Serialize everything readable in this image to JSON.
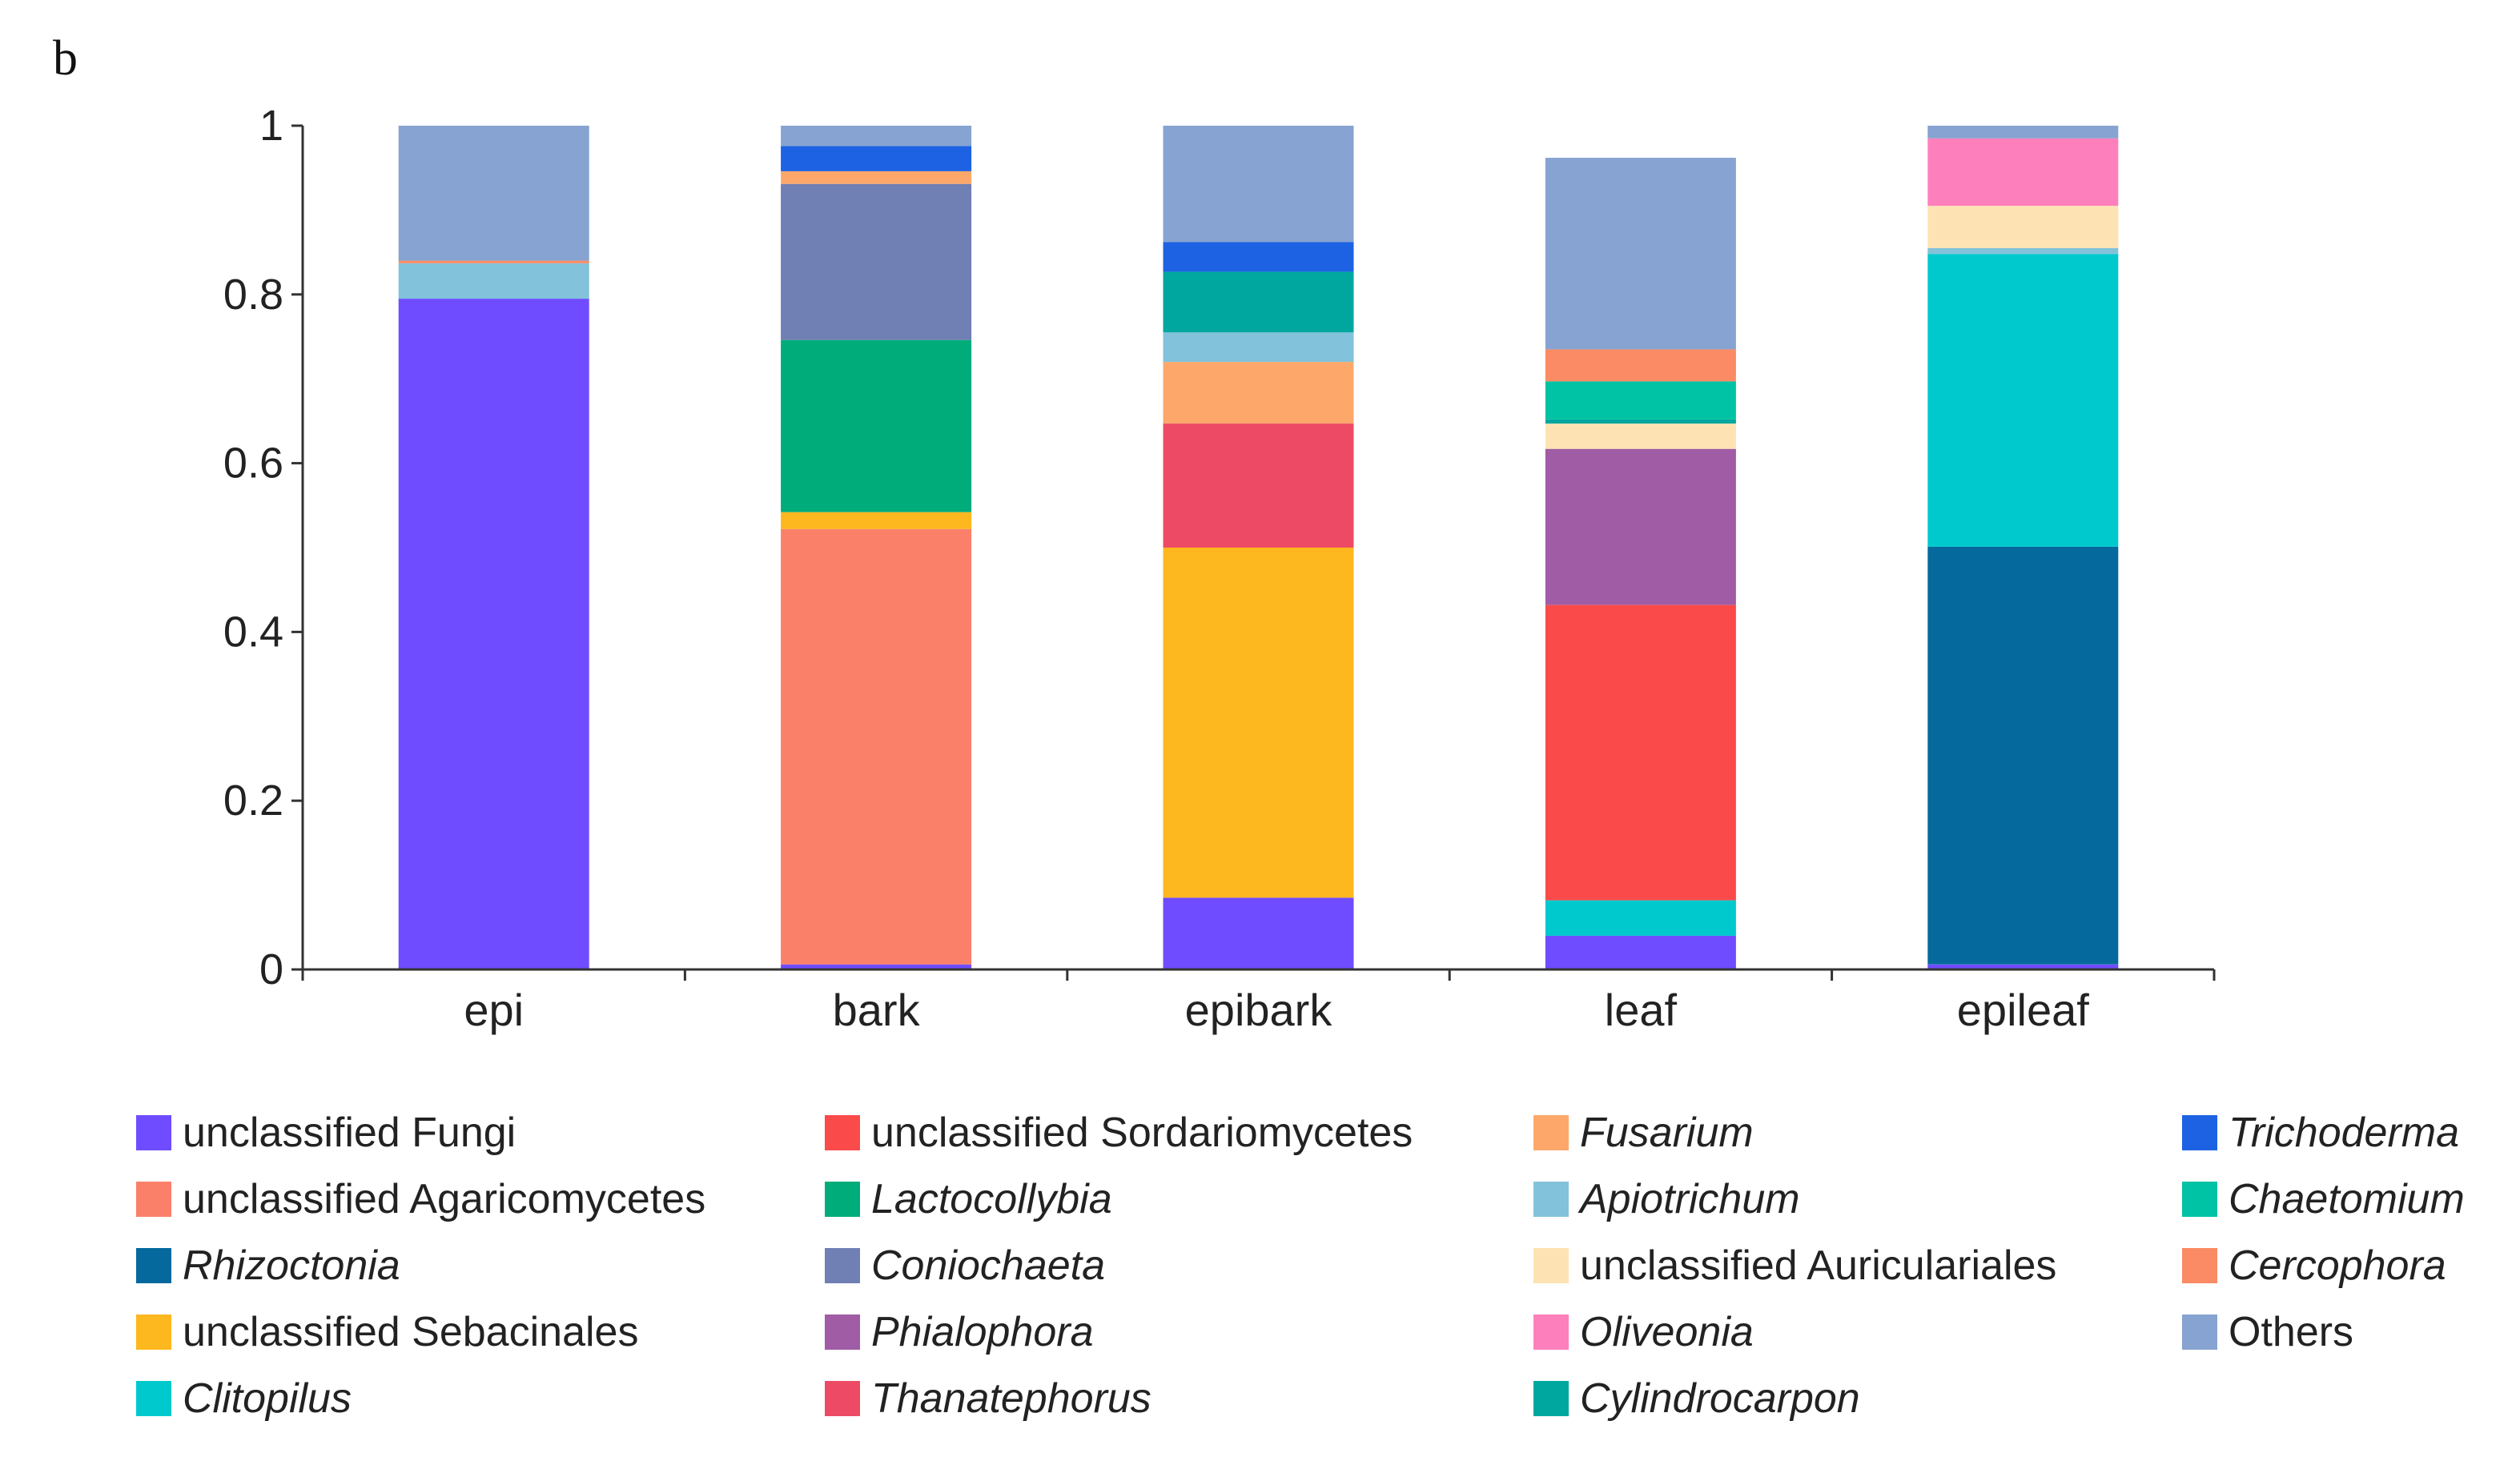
{
  "panel_label": "b",
  "chart_data": {
    "type": "bar",
    "stacked": true,
    "categories": [
      "epi",
      "bark",
      "epibark",
      "leaf",
      "epileaf"
    ],
    "ylim": [
      0,
      1
    ],
    "yticks": [
      0,
      0.2,
      0.4,
      0.6,
      0.8,
      1
    ],
    "ytick_labels": [
      "0",
      "0.2",
      "0.4",
      "0.6",
      "0.8",
      "1"
    ],
    "xlabel": "",
    "ylabel": "",
    "series": [
      {
        "name": "unclassified Fungi",
        "italic": false,
        "color": "#6f4cff",
        "values": [
          0.795,
          0.006,
          0.085,
          0.04,
          0.006
        ]
      },
      {
        "name": "unclassified Agaricomycetes",
        "italic": false,
        "color": "#fb8069",
        "values": [
          0,
          0.516,
          0,
          0,
          0
        ]
      },
      {
        "name": "Rhizoctonia",
        "italic": true,
        "color": "#05699d",
        "values": [
          0,
          0,
          0,
          0,
          0.495
        ]
      },
      {
        "name": "unclassified Sebacinales",
        "italic": false,
        "color": "#fdb71f",
        "values": [
          0,
          0.02,
          0.415,
          0,
          0
        ]
      },
      {
        "name": "Clitopilus",
        "italic": true,
        "color": "#00c9ce",
        "values": [
          0,
          0,
          0,
          0.042,
          0.347
        ]
      },
      {
        "name": "unclassified Sordariomycetes",
        "italic": false,
        "color": "#fb4a4a",
        "values": [
          0,
          0,
          0,
          0.35,
          0
        ]
      },
      {
        "name": "Lactocollybia",
        "italic": true,
        "color": "#00ac7a",
        "values": [
          0,
          0.204,
          0,
          0,
          0
        ]
      },
      {
        "name": "Coniochaeta",
        "italic": true,
        "color": "#707fb4",
        "values": [
          0,
          0.185,
          0,
          0,
          0
        ]
      },
      {
        "name": "Phialophora",
        "italic": true,
        "color": "#a05ca4",
        "values": [
          0,
          0,
          0,
          0.185,
          0
        ]
      },
      {
        "name": "Thanatephorus",
        "italic": true,
        "color": "#ed4b65",
        "values": [
          0,
          0,
          0.147,
          0,
          0
        ]
      },
      {
        "name": "Fusarium",
        "italic": true,
        "color": "#fda86a",
        "values": [
          0,
          0.015,
          0.073,
          0,
          0
        ]
      },
      {
        "name": "Apiotrichum",
        "italic": true,
        "color": "#82c2da",
        "values": [
          0.042,
          0,
          0.035,
          0,
          0.007
        ]
      },
      {
        "name": "unclassified Auriculariales",
        "italic": false,
        "color": "#fde3b3",
        "values": [
          0,
          0,
          0,
          0.03,
          0.05
        ]
      },
      {
        "name": "Oliveonia",
        "italic": true,
        "color": "#fd80bc",
        "values": [
          0,
          0,
          0,
          0,
          0.08
        ]
      },
      {
        "name": "Cylindrocarpon",
        "italic": true,
        "color": "#00a79f",
        "values": [
          0,
          0,
          0.072,
          0.005,
          0
        ]
      },
      {
        "name": "Trichoderma",
        "italic": true,
        "color": "#1d62e3",
        "values": [
          0,
          0.03,
          0.035,
          0,
          0
        ]
      },
      {
        "name": "Chaetomium",
        "italic": true,
        "color": "#00c2a4",
        "values": [
          0,
          0,
          0,
          0.045,
          0
        ]
      },
      {
        "name": "Cercophora",
        "italic": true,
        "color": "#fa8b64",
        "values": [
          0.003,
          0,
          0,
          0.038,
          0
        ]
      },
      {
        "name": "Others",
        "italic": false,
        "color": "#87a3d1",
        "values": [
          0.16,
          0.024,
          0.138,
          0.227,
          0.015
        ]
      }
    ]
  }
}
